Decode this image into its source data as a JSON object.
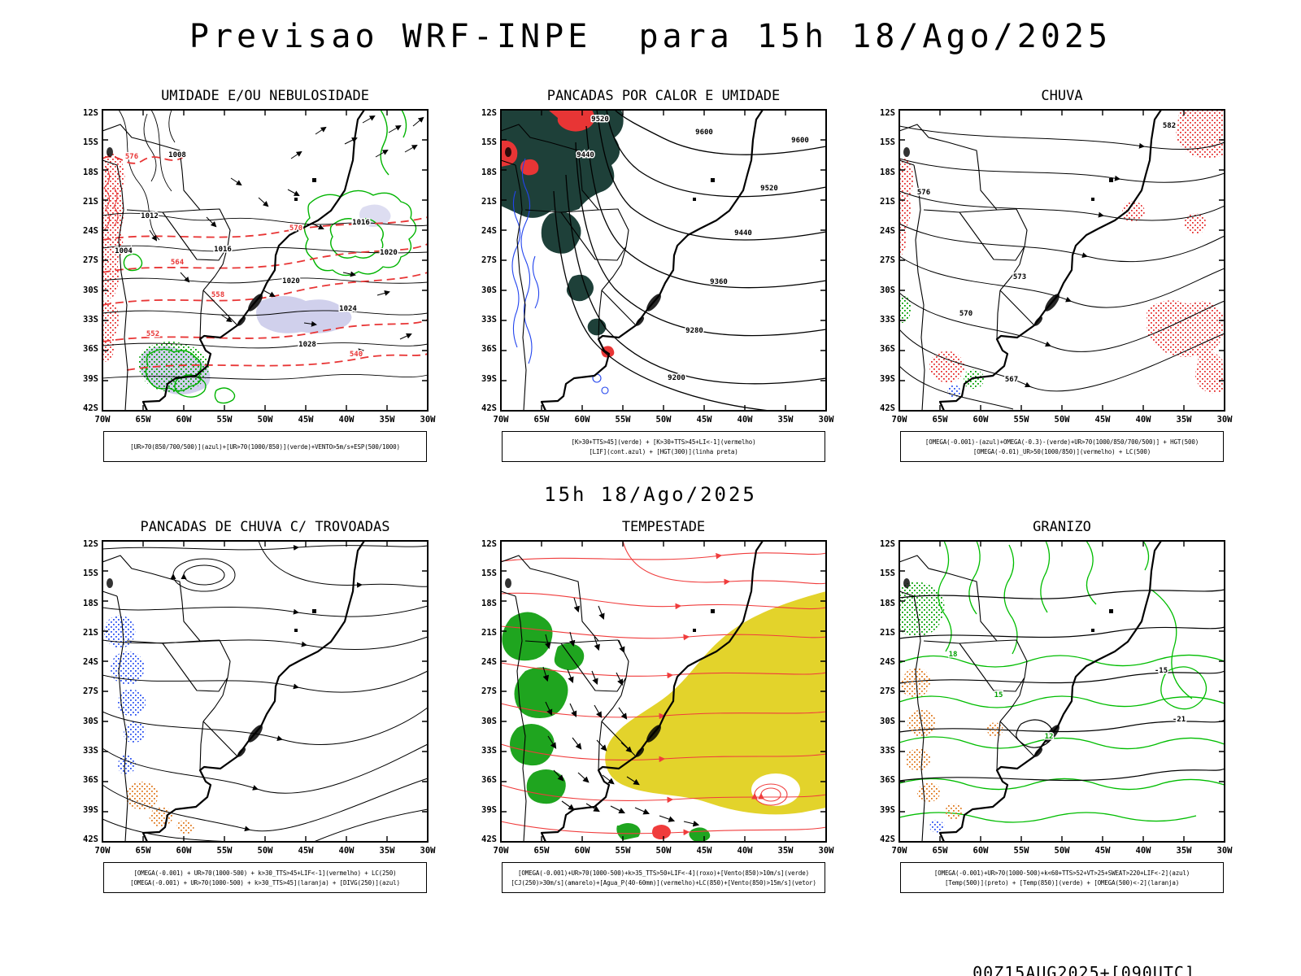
{
  "page": {
    "title": "Previsao WRF-INPE  para 15h 18/Ago/2025",
    "mid_caption": "15h 18/Ago/2025",
    "footer": "00Z15AUG2025+[090UTC]"
  },
  "axes": {
    "lat": [
      "12S",
      "15S",
      "18S",
      "21S",
      "24S",
      "27S",
      "30S",
      "33S",
      "36S",
      "39S",
      "42S"
    ],
    "lon": [
      "70W",
      "65W",
      "60W",
      "55W",
      "50W",
      "45W",
      "40W",
      "35W",
      "30W"
    ]
  },
  "colors": {
    "contour_black": "#000000",
    "red": "#e83535",
    "green": "#00a000",
    "blue": "#2244ee",
    "dark_teal": "#1e4039",
    "yellow": "#e3d32b",
    "orange": "#e07a1f",
    "cloud_shade_purple": "#a9a9dd"
  },
  "panels": [
    {
      "title": "UMIDADE E/OU NEBULOSIDADE",
      "legend": [
        "[UR>70(850/700/500)](azul)+[UR>70(1000/850)](verde)+VENTO>5m/s+ESP(500/1000)"
      ],
      "labels": [
        "1008",
        "1012",
        "1016",
        "1020",
        "1016",
        "1020",
        "1024",
        "1028",
        "1004",
        "576",
        "570",
        "564",
        "558",
        "552",
        "540"
      ]
    },
    {
      "title": "PANCADAS POR CALOR E UMIDADE",
      "legend": [
        "[K>30+TTS>45](verde) + [K>30+TTS>45+LI<-1](vermelho)",
        "[LIF](cont.azul) + [HGT(300)](linha preta)"
      ],
      "labels": [
        "9600",
        "9600",
        "9520",
        "9520",
        "9440",
        "9440",
        "9360",
        "9280",
        "9200"
      ]
    },
    {
      "title": "CHUVA",
      "legend": [
        "[OMEGA(-0.001)-(azul)+OMEGA(-0.3)-(verde)+UR>70(1000/850/700/500)] + HGT(500)",
        "[OMEGA(-0.01)_UR>50(1000/850)](vermelho) + LC(500)"
      ],
      "labels": [
        "582",
        "576",
        "573",
        "570",
        "567"
      ]
    },
    {
      "title": "PANCADAS DE CHUVA C/ TROVOADAS",
      "legend": [
        "[OMEGA(-0.001) + UR>70(1000-500) + k>30_TTS>45+LIF<-1](vermelho) + LC(250)",
        "[OMEGA(-0.001) + UR>70(1000-500) + k>30_TTS>45](laranja) + [DIVG(250)](azul)"
      ],
      "labels": []
    },
    {
      "title": "TEMPESTADE",
      "legend": [
        "[OMEGA(-0.001)+UR>70(1000-500)+k>35_TTS>50+LIF<-4](roxo)+[Vento(850)>10m/s](verde)",
        "[CJ(250)>30m/s](amarelo)+[Agua_P(40-60mm)](vermelho)+LC(850)+[Vento(850)>15m/s](vetor)"
      ],
      "labels": []
    },
    {
      "title": "GRANIZO",
      "legend": [
        "[OMEGA(-0.001)+UR>70(1000-500)+k<60+TTS>52+VT>25+SWEAT>220+LIF<-2](azul)",
        "[Temp(500)](preto) + [Temp(850)](verde) + [OMEGA(500)<-2](laranja)"
      ],
      "labels": [
        "-15",
        "-21",
        "18",
        "15",
        "12"
      ]
    }
  ]
}
